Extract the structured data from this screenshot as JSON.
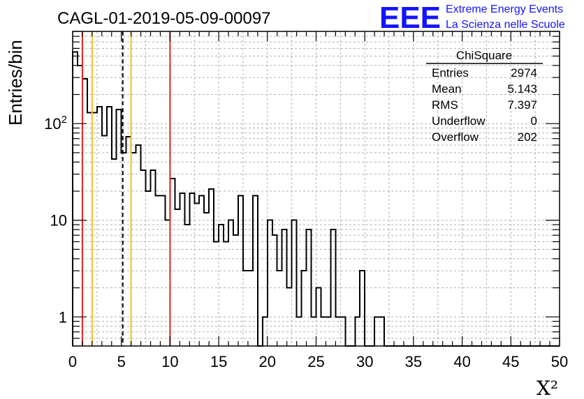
{
  "title": "CAGL-01-2019-05-09-00097",
  "logo": {
    "mark": "EEE",
    "line1": "Extreme Energy Events",
    "line2": "La Scienza nelle Scuole",
    "color": "#1414ff"
  },
  "stats": {
    "name": "ChiSquare",
    "rows": [
      {
        "label": "Entries",
        "value": "2974"
      },
      {
        "label": "Mean",
        "value": "5.143"
      },
      {
        "label": "RMS",
        "value": "7.397"
      },
      {
        "label": "Underflow",
        "value": "0"
      },
      {
        "label": "Overflow",
        "value": "202"
      }
    ]
  },
  "chart_data": {
    "type": "histogram",
    "ylabel": "Entries/bin",
    "xlabel": "X²",
    "xlim": [
      0,
      50
    ],
    "ylim": [
      0.5,
      900
    ],
    "yscale": "log",
    "grid": true,
    "bin_width": 0.5,
    "x_ticks": [
      "0",
      "5",
      "10",
      "15",
      "20",
      "25",
      "30",
      "35",
      "40",
      "45",
      "50"
    ],
    "y_ticks": [
      {
        "value": 1,
        "label": "1"
      },
      {
        "value": 10,
        "label": "10"
      },
      {
        "value": 100,
        "label": "10²"
      }
    ],
    "bin_counts": [
      550,
      400,
      290,
      130,
      130,
      150,
      75,
      150,
      43,
      140,
      50,
      73,
      50,
      60,
      33,
      20,
      33,
      18,
      18,
      10,
      27,
      13,
      19,
      9,
      19,
      15,
      18,
      12,
      21,
      6,
      9,
      6,
      10,
      7,
      18,
      3,
      3,
      18,
      0,
      1,
      10,
      7,
      3,
      8,
      2,
      10,
      1,
      3,
      8,
      1,
      2,
      1,
      1,
      8,
      1,
      1,
      0,
      0,
      1,
      3,
      0,
      0,
      1,
      1,
      0,
      0,
      0,
      0,
      0,
      0,
      0,
      0,
      0,
      0,
      0,
      0,
      0,
      0,
      0,
      0,
      0,
      0,
      0,
      0,
      0,
      0,
      0,
      0,
      0,
      0,
      0,
      0,
      0,
      0,
      0,
      0,
      0,
      0,
      0,
      0
    ],
    "tail_counts_note": "",
    "vlines": [
      {
        "x": 1,
        "color": "#e8231c",
        "style": "solid"
      },
      {
        "x": 2,
        "color": "#f2c21b",
        "style": "solid"
      },
      {
        "x": 5.143,
        "color": "#000000",
        "style": "dashed"
      },
      {
        "x": 6,
        "color": "#f2c21b",
        "style": "solid"
      },
      {
        "x": 10,
        "color": "#e8231c",
        "style": "solid"
      }
    ]
  }
}
